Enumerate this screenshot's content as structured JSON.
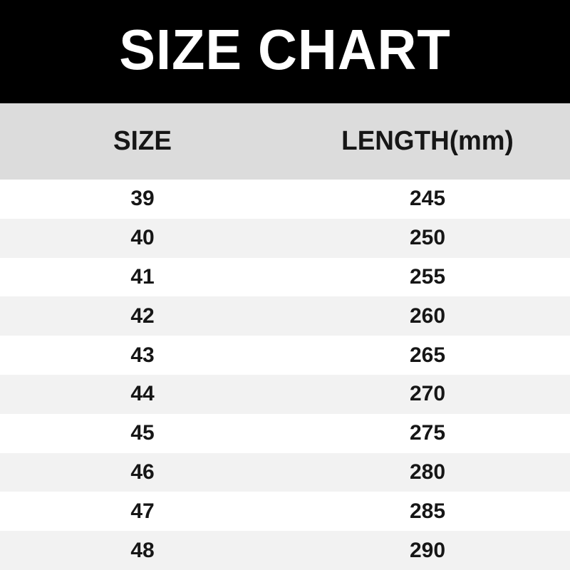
{
  "header": {
    "title": "SIZE CHART"
  },
  "colors": {
    "banner_bg": "#000000",
    "banner_text": "#ffffff",
    "table_header_bg": "#dcdcdc",
    "row_bg": "#ffffff",
    "row_alt_bg": "#f2f2f2",
    "text": "#161616"
  },
  "chart_data": {
    "type": "table",
    "title": "SIZE CHART",
    "columns": [
      "SIZE",
      "LENGTH(mm)"
    ],
    "rows": [
      {
        "size": "39",
        "length": "245"
      },
      {
        "size": "40",
        "length": "250"
      },
      {
        "size": "41",
        "length": "255"
      },
      {
        "size": "42",
        "length": "260"
      },
      {
        "size": "43",
        "length": "265"
      },
      {
        "size": "44",
        "length": "270"
      },
      {
        "size": "45",
        "length": "275"
      },
      {
        "size": "46",
        "length": "280"
      },
      {
        "size": "47",
        "length": "285"
      },
      {
        "size": "48",
        "length": "290"
      }
    ]
  }
}
